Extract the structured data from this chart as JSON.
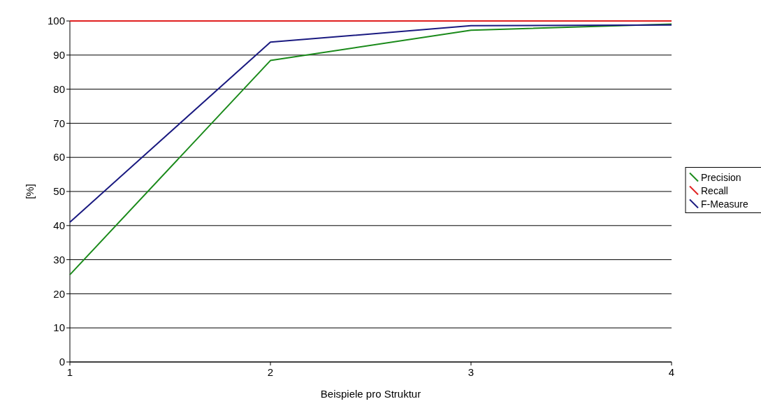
{
  "chart_data": {
    "type": "line",
    "xlabel": "Beispiele pro Struktur",
    "ylabel": "[%]",
    "x": [
      1,
      2,
      3,
      4
    ],
    "xlim": [
      1,
      4
    ],
    "xticks": [
      1,
      2,
      3,
      4
    ],
    "ylim": [
      0,
      100
    ],
    "yticks": [
      0,
      10,
      20,
      30,
      40,
      50,
      60,
      70,
      80,
      90,
      100
    ],
    "grid": "y",
    "legend": "right",
    "marker": "none",
    "line_style": "solid",
    "series": [
      {
        "name": "Precision",
        "color": "#1a8a1a",
        "values": [
          25.6,
          88.4,
          97.3,
          99.1
        ]
      },
      {
        "name": "Recall",
        "color": "#e02020",
        "values": [
          100,
          100,
          100,
          100
        ]
      },
      {
        "name": "F-Measure",
        "color": "#1a1a80",
        "values": [
          41,
          93.8,
          98.6,
          98.8
        ]
      }
    ]
  }
}
